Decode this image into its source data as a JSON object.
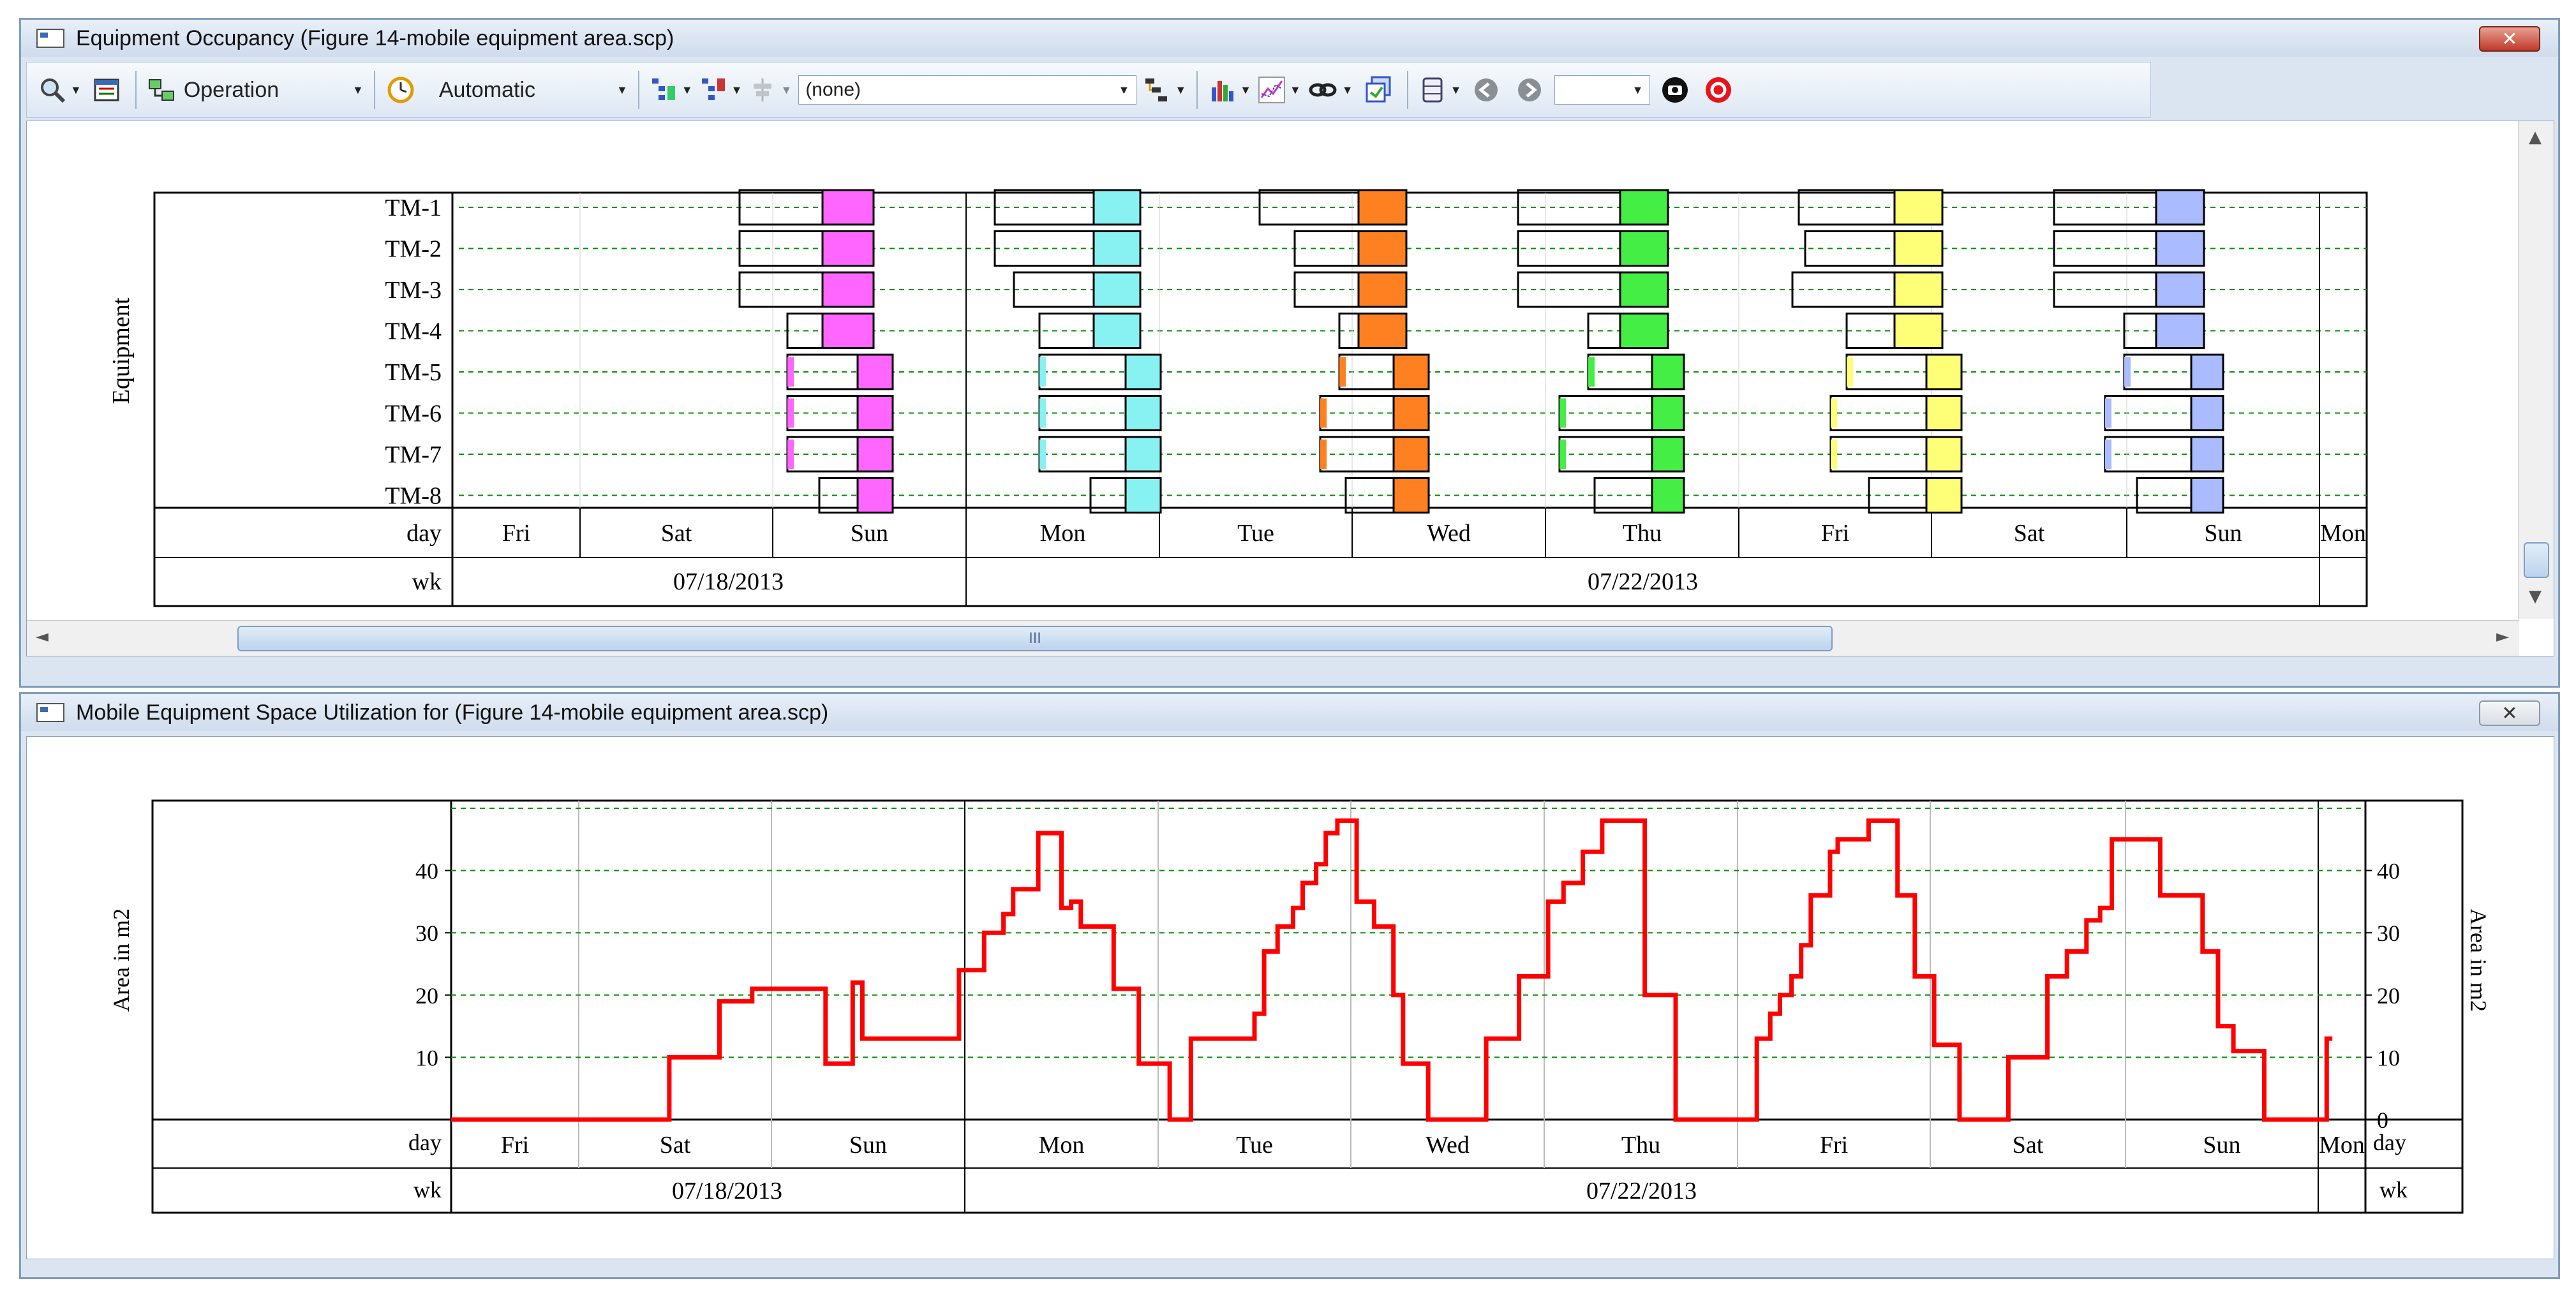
{
  "top_window": {
    "title": "Equipment Occupancy (Figure 14-mobile equipment area.scp)",
    "toolbar": {
      "operation_label": "Operation",
      "automatic_label": "Automatic",
      "filter_value": "(none)",
      "icons": [
        "magnifier-icon",
        "grid-icon",
        "operation-icon",
        "clock-icon",
        "tree-expand-icon",
        "tree-collapse-icon",
        "align-icon",
        "gantt-icon",
        "bar-chart-icon",
        "line-chart-icon",
        "link-icon",
        "layers-icon",
        "database-icon",
        "back-icon",
        "forward-icon",
        "snapshot-icon",
        "stop-icon"
      ]
    },
    "equipment_axis_label": "Equipment",
    "equipment": [
      "TM-1",
      "TM-2",
      "TM-3",
      "TM-4",
      "TM-5",
      "TM-6",
      "TM-7",
      "TM-8"
    ],
    "day_row_label": "day",
    "wk_row_label": "wk",
    "scroll_grip": "III",
    "occupancy_colors": [
      "#ff66ff",
      "#88f2f2",
      "#ff8020",
      "#44ee44",
      "#ffff77",
      "#aabbff"
    ]
  },
  "bottom_window": {
    "title": "Mobile Equipment Space Utilization for (Figure 14-mobile equipment area.scp)",
    "day_row_label": "day",
    "wk_row_label": "wk"
  },
  "timeline": {
    "days": [
      "Fri",
      "Sat",
      "Sun",
      "Mon",
      "Tue",
      "Wed",
      "Thu",
      "Fri",
      "Sat",
      "Sun",
      "Mon"
    ],
    "weeks": [
      "07/18/2013",
      "07/22/2013"
    ]
  },
  "chart_data": {
    "type": "line",
    "title": "",
    "xlabel": "",
    "ylabel": "Area in m2",
    "ylabel_right": "Area in m2",
    "ylim": [
      0,
      50
    ],
    "yticks": [
      10,
      20,
      30,
      40
    ],
    "yticks_right": [
      0,
      10,
      20,
      30,
      40
    ],
    "x_unit": "days from start of Fri",
    "xlim": [
      0,
      10.3
    ],
    "color": "#ff0000",
    "step": true,
    "series": [
      {
        "name": "",
        "points": [
          [
            0,
            0
          ],
          [
            1.47,
            0
          ],
          [
            1.47,
            10
          ],
          [
            1.73,
            10
          ],
          [
            1.73,
            19
          ],
          [
            1.9,
            19
          ],
          [
            1.9,
            21
          ],
          [
            2.28,
            21
          ],
          [
            2.28,
            9
          ],
          [
            2.42,
            9
          ],
          [
            2.42,
            22
          ],
          [
            2.47,
            22
          ],
          [
            2.47,
            13
          ],
          [
            2.97,
            13
          ],
          [
            2.97,
            24
          ],
          [
            3.1,
            24
          ],
          [
            3.1,
            30
          ],
          [
            3.2,
            30
          ],
          [
            3.2,
            33
          ],
          [
            3.25,
            33
          ],
          [
            3.25,
            37
          ],
          [
            3.38,
            37
          ],
          [
            3.38,
            46
          ],
          [
            3.5,
            46
          ],
          [
            3.5,
            34
          ],
          [
            3.55,
            34
          ],
          [
            3.55,
            35
          ],
          [
            3.6,
            35
          ],
          [
            3.6,
            31
          ],
          [
            3.77,
            31
          ],
          [
            3.77,
            21
          ],
          [
            3.9,
            21
          ],
          [
            3.9,
            9
          ],
          [
            4.06,
            9
          ],
          [
            4.06,
            0
          ],
          [
            4.17,
            0
          ],
          [
            4.17,
            13
          ],
          [
            4.5,
            13
          ],
          [
            4.5,
            17
          ],
          [
            4.55,
            17
          ],
          [
            4.55,
            27
          ],
          [
            4.62,
            27
          ],
          [
            4.62,
            31
          ],
          [
            4.7,
            31
          ],
          [
            4.7,
            34
          ],
          [
            4.75,
            34
          ],
          [
            4.75,
            38
          ],
          [
            4.82,
            38
          ],
          [
            4.82,
            41
          ],
          [
            4.87,
            41
          ],
          [
            4.87,
            46
          ],
          [
            4.93,
            46
          ],
          [
            4.93,
            48
          ],
          [
            5.03,
            48
          ],
          [
            5.03,
            35
          ],
          [
            5.12,
            35
          ],
          [
            5.12,
            31
          ],
          [
            5.22,
            31
          ],
          [
            5.22,
            20
          ],
          [
            5.27,
            20
          ],
          [
            5.27,
            9
          ],
          [
            5.4,
            9
          ],
          [
            5.4,
            0
          ],
          [
            5.7,
            0
          ],
          [
            5.7,
            13
          ],
          [
            5.87,
            13
          ],
          [
            5.87,
            23
          ],
          [
            6.02,
            23
          ],
          [
            6.02,
            35
          ],
          [
            6.1,
            35
          ],
          [
            6.1,
            38
          ],
          [
            6.2,
            38
          ],
          [
            6.2,
            43
          ],
          [
            6.3,
            43
          ],
          [
            6.3,
            48
          ],
          [
            6.52,
            48
          ],
          [
            6.52,
            20
          ],
          [
            6.68,
            20
          ],
          [
            6.68,
            0
          ],
          [
            7.1,
            0
          ],
          [
            7.1,
            13
          ],
          [
            7.17,
            13
          ],
          [
            7.17,
            17
          ],
          [
            7.22,
            17
          ],
          [
            7.22,
            20
          ],
          [
            7.28,
            20
          ],
          [
            7.28,
            23
          ],
          [
            7.33,
            23
          ],
          [
            7.33,
            28
          ],
          [
            7.38,
            28
          ],
          [
            7.38,
            36
          ],
          [
            7.48,
            36
          ],
          [
            7.48,
            43
          ],
          [
            7.52,
            43
          ],
          [
            7.52,
            45
          ],
          [
            7.68,
            45
          ],
          [
            7.68,
            48
          ],
          [
            7.83,
            48
          ],
          [
            7.83,
            36
          ],
          [
            7.92,
            36
          ],
          [
            7.92,
            23
          ],
          [
            8.02,
            23
          ],
          [
            8.02,
            12
          ],
          [
            8.15,
            12
          ],
          [
            8.15,
            0
          ],
          [
            8.4,
            0
          ],
          [
            8.4,
            10
          ],
          [
            8.6,
            10
          ],
          [
            8.6,
            23
          ],
          [
            8.7,
            23
          ],
          [
            8.7,
            27
          ],
          [
            8.8,
            27
          ],
          [
            8.8,
            32
          ],
          [
            8.87,
            32
          ],
          [
            8.87,
            34
          ],
          [
            8.93,
            34
          ],
          [
            8.93,
            45
          ],
          [
            9.18,
            45
          ],
          [
            9.18,
            36
          ],
          [
            9.4,
            36
          ],
          [
            9.4,
            27
          ],
          [
            9.48,
            27
          ],
          [
            9.48,
            15
          ],
          [
            9.56,
            15
          ],
          [
            9.56,
            11
          ],
          [
            9.72,
            11
          ],
          [
            9.72,
            0
          ],
          [
            10.18,
            0
          ],
          [
            10.18,
            13
          ],
          [
            10.3,
            13
          ]
        ]
      }
    ],
    "axis_rows": {
      "day": [
        "Fri",
        "Sat",
        "Sun",
        "Mon",
        "Tue",
        "Wed",
        "Thu",
        "Fri",
        "Sat",
        "Sun",
        "Mon"
      ],
      "wk": [
        "07/18/2013",
        "07/22/2013"
      ]
    },
    "grid": true,
    "grid_style": "dashed green horizontal, grey vertical day lines"
  }
}
